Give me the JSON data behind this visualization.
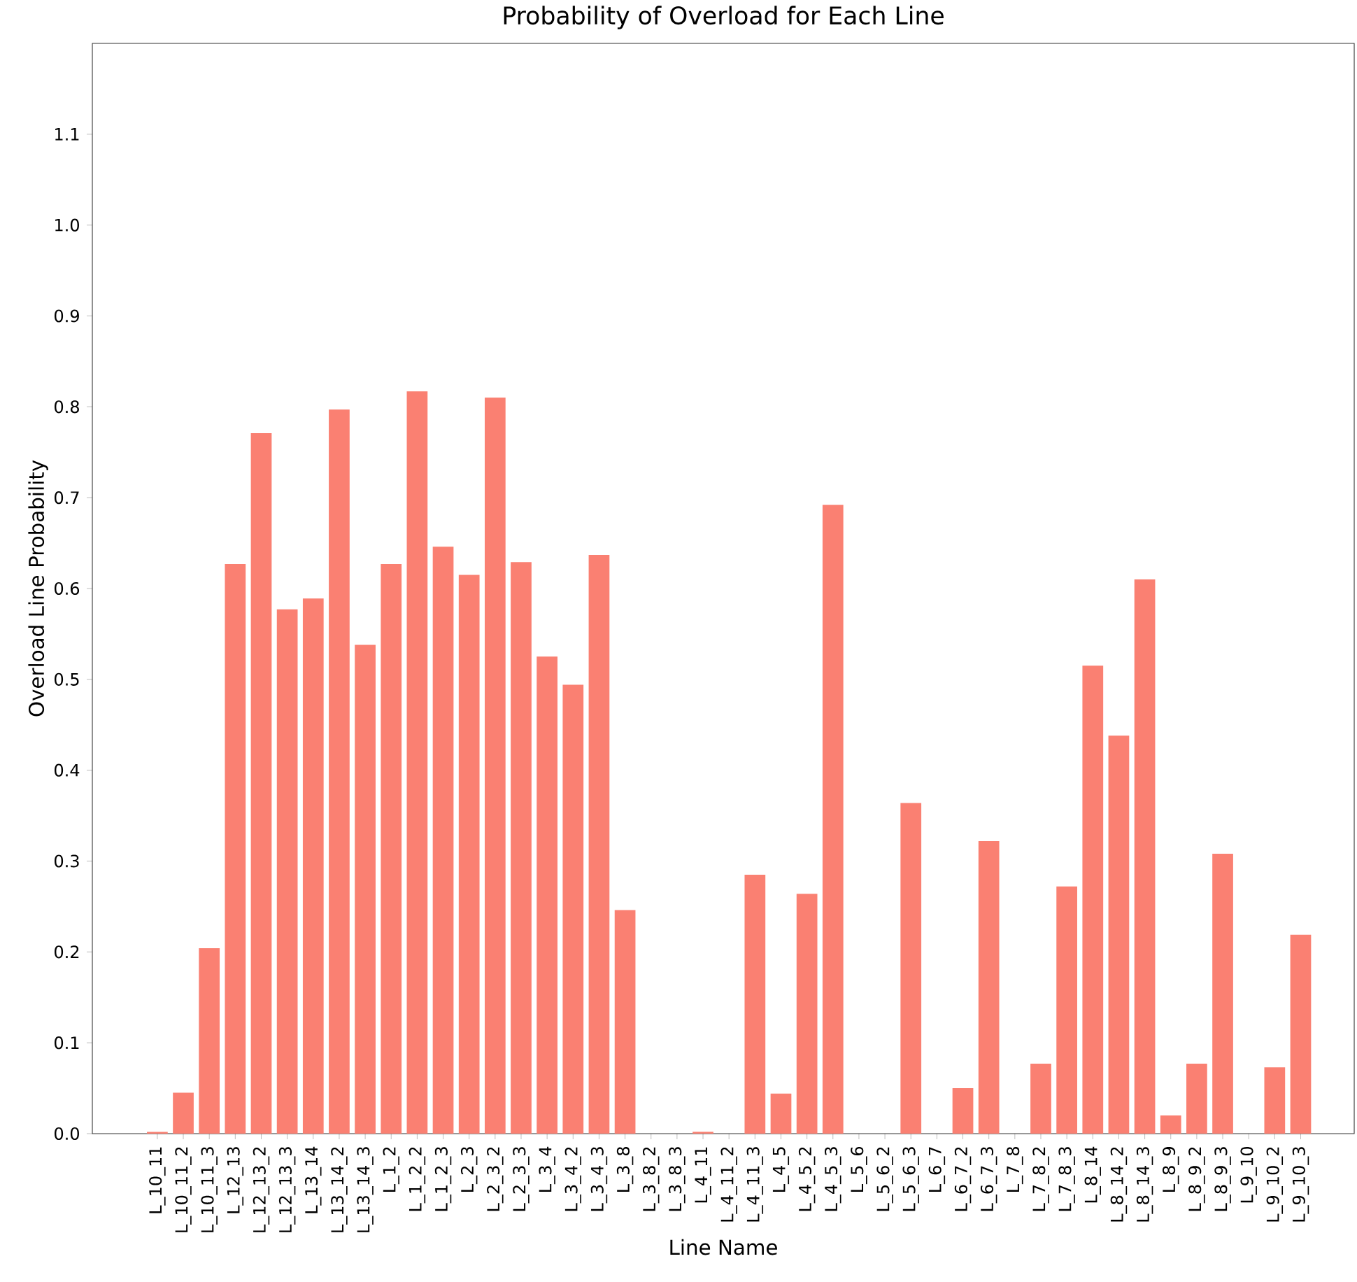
{
  "chart_data": {
    "type": "bar",
    "title": "Probability of Overload for Each Line",
    "xlabel": "Line Name",
    "ylabel": "Overload Line Probability",
    "color": "#fa8072",
    "categories": [
      "L_10_11",
      "L_10_11_2",
      "L_10_11_3",
      "L_12_13",
      "L_12_13_2",
      "L_12_13_3",
      "L_13_14",
      "L_13_14_2",
      "L_13_14_3",
      "L_1_2",
      "L_1_2_2",
      "L_1_2_3",
      "L_2_3",
      "L_2_3_2",
      "L_2_3_3",
      "L_3_4",
      "L_3_4_2",
      "L_3_4_3",
      "L_3_8",
      "L_3_8_2",
      "L_3_8_3",
      "L_4_11",
      "L_4_11_2",
      "L_4_11_3",
      "L_4_5",
      "L_4_5_2",
      "L_4_5_3",
      "L_5_6",
      "L_5_6_2",
      "L_5_6_3",
      "L_6_7",
      "L_6_7_2",
      "L_6_7_3",
      "L_7_8",
      "L_7_8_2",
      "L_7_8_3",
      "L_8_14",
      "L_8_14_2",
      "L_8_14_3",
      "L_8_9",
      "L_8_9_2",
      "L_8_9_3",
      "L_9_10",
      "L_9_10_2",
      "L_9_10_3"
    ],
    "values": [
      0.002,
      0.045,
      0.204,
      0.627,
      0.771,
      0.577,
      0.589,
      0.797,
      0.538,
      0.627,
      0.817,
      0.646,
      0.615,
      0.81,
      0.629,
      0.525,
      0.494,
      0.637,
      0.246,
      0,
      0,
      0.002,
      0,
      0.285,
      0.044,
      0.264,
      0.692,
      0,
      0,
      0.364,
      0,
      0.05,
      0.322,
      0,
      0.077,
      0.272,
      0.515,
      0.438,
      0.61,
      0.02,
      0.077,
      0.308,
      0,
      0.073,
      0.219
    ],
    "ylim": [
      0,
      1.2
    ],
    "yticks": [
      {
        "value": 0,
        "label": "0.0"
      },
      0.1,
      0.2,
      0.3,
      0.4,
      0.5,
      0.6,
      0.7,
      0.8,
      0.9,
      {
        "value": 1,
        "label": "1.0"
      },
      1.1
    ],
    "grid": false
  }
}
